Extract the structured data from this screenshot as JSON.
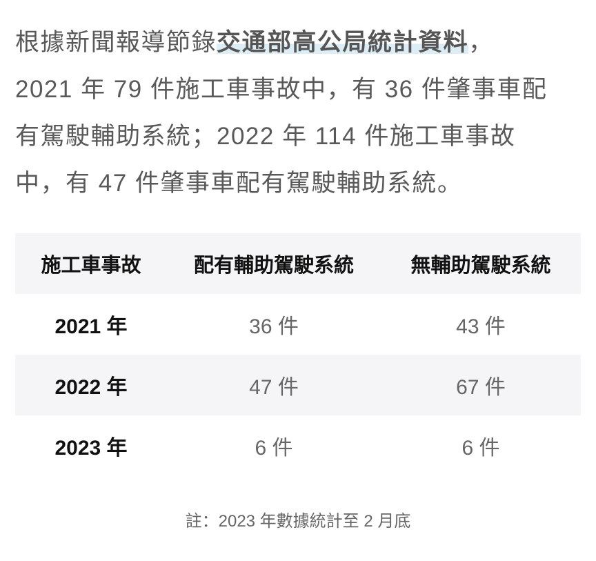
{
  "paragraph": {
    "line1_prefix": "根據新聞報導節錄",
    "line1_highlight": "交通部高公局統計資料",
    "line1_suffix": "，",
    "line2": "2021 年 79 件施工車事故中，有 36 件肇事車配",
    "line3": "有駕駛輔助系統；2022 年 114 件施工車事故",
    "line4": "中，有 47 件肇事車配有駕駛輔助系統。"
  },
  "table": {
    "headers": [
      "施工車事故",
      "配有輔助駕駛系統",
      "無輔助駕駛系統"
    ],
    "rows": [
      [
        "2021 年",
        "36 件",
        "43 件"
      ],
      [
        "2022 年",
        "47 件",
        "67 件"
      ],
      [
        "2023 年",
        "6 件",
        "6 件"
      ]
    ]
  },
  "note": "註：2023 年數據統計至 2 月底",
  "colors": {
    "highlight": "#dcedf5",
    "stripe": "#f5f5f7",
    "text": "#595959"
  }
}
